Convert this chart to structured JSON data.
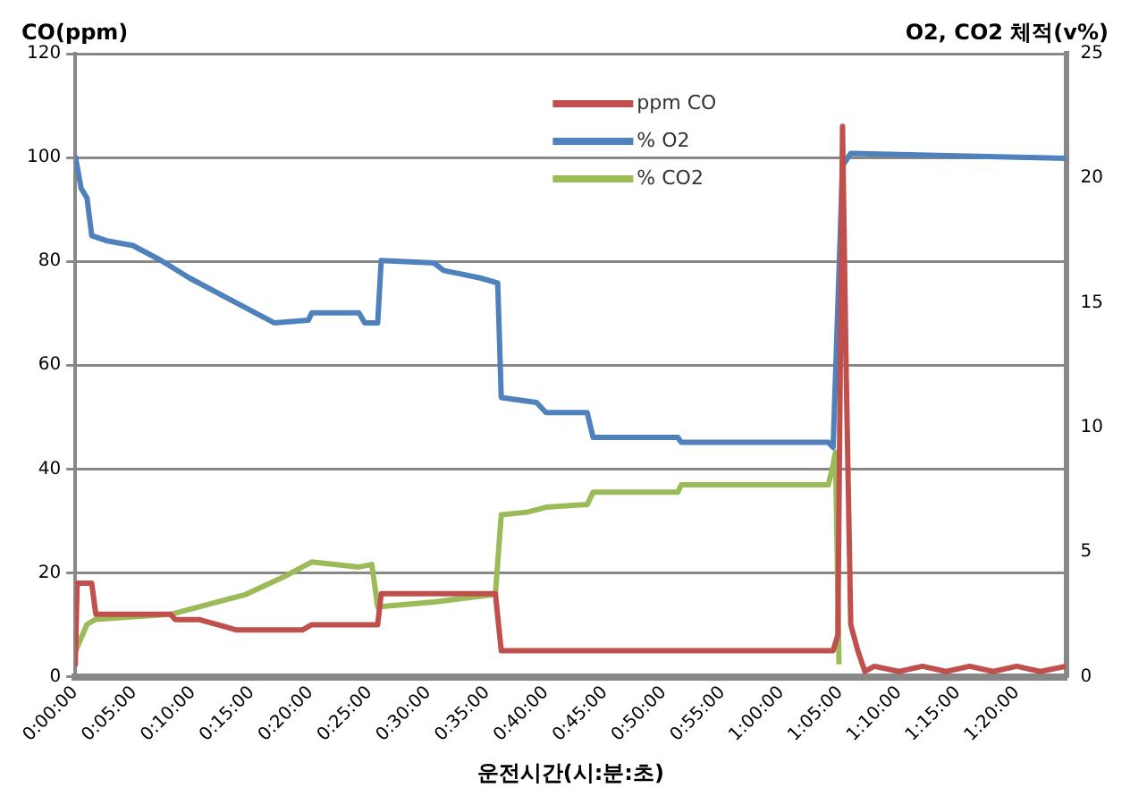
{
  "chart_data": {
    "type": "line",
    "xlabel": "운전시간(시:분:초)",
    "ylabel": "CO(ppm)",
    "y2label": "O2, CO2 체적(v%)",
    "xlim": [
      0,
      84.2
    ],
    "xticks": [
      {
        "value": 0,
        "label": "0:00:00"
      },
      {
        "value": 5,
        "label": "0:05:00"
      },
      {
        "value": 10,
        "label": "0:10:00"
      },
      {
        "value": 15,
        "label": "0:15:00"
      },
      {
        "value": 20,
        "label": "0:20:00"
      },
      {
        "value": 25,
        "label": "0:25:00"
      },
      {
        "value": 30,
        "label": "0:30:00"
      },
      {
        "value": 35,
        "label": "0:35:00"
      },
      {
        "value": 40,
        "label": "0:40:00"
      },
      {
        "value": 45,
        "label": "0:45:00"
      },
      {
        "value": 50,
        "label": "0:50:00"
      },
      {
        "value": 55,
        "label": "0:55:00"
      },
      {
        "value": 60,
        "label": "1:00:00"
      },
      {
        "value": 65,
        "label": "1:05:00"
      },
      {
        "value": 70,
        "label": "1:10:00"
      },
      {
        "value": 75,
        "label": "1:15:00"
      },
      {
        "value": 80,
        "label": "1:20:00"
      }
    ],
    "ylim": [
      0,
      120
    ],
    "yticks": [
      0,
      20,
      40,
      60,
      80,
      100,
      120
    ],
    "y2lim": [
      0,
      25
    ],
    "y2ticks": [
      0,
      5,
      10,
      15,
      20,
      25
    ],
    "grid": "y",
    "legend": "top",
    "marker": "none",
    "line_style": "solid",
    "series": [
      {
        "name": "ppm CO",
        "color": "#c0504d",
        "x": [
          0,
          0.16,
          1.4,
          1.75,
          8.1,
          8.5,
          10.5,
          13.7,
          19.3,
          20.1,
          25.7,
          26,
          35.7,
          36.2,
          64.4,
          64.8,
          65.2,
          65.5,
          65.9,
          66.5,
          67.1,
          67.9,
          70,
          72,
          74,
          76,
          78,
          80,
          82,
          84.2
        ],
        "values": [
          2,
          18,
          18,
          12,
          12,
          11,
          11,
          9,
          9,
          10,
          10,
          16,
          16,
          5,
          5,
          8,
          106,
          60,
          10,
          5,
          1,
          2,
          1,
          2,
          1,
          2,
          1,
          2,
          1,
          2
        ]
      },
      {
        "name": "% O2",
        "color": "#4f81bd",
        "axis": "y2",
        "x": [
          0,
          0.5,
          1,
          1.4,
          2.6,
          4.9,
          7.3,
          9.7,
          12.9,
          16.9,
          19.8,
          20.1,
          24.1,
          24.6,
          25.7,
          26,
          30.5,
          31.3,
          34.4,
          35.9,
          36.2,
          39.2,
          40,
          43.5,
          44,
          51.2,
          51.5,
          64,
          64.4,
          65.2,
          65.9,
          84.2
        ],
        "values": [
          20.9,
          19.6,
          19.2,
          17.7,
          17.5,
          17.3,
          16.7,
          16,
          15.2,
          14.2,
          14.3,
          14.6,
          14.6,
          14.2,
          14.2,
          16.7,
          16.6,
          16.3,
          16,
          15.8,
          11.2,
          11,
          10.6,
          10.6,
          9.6,
          9.6,
          9.4,
          9.4,
          9.2,
          20.5,
          21,
          20.8
        ]
      },
      {
        "name": "% CO2",
        "color": "#9bbb59",
        "axis": "y2",
        "x": [
          0,
          1,
          1.75,
          8.1,
          14.5,
          17.7,
          19.3,
          20.1,
          24.1,
          25.2,
          25.7,
          30.5,
          35.7,
          36.2,
          38.4,
          40,
          43.2,
          43.5,
          44,
          51.2,
          51.5,
          64,
          64.4,
          64.6,
          64.9
        ],
        "values": [
          1,
          2.1,
          2.3,
          2.5,
          3.3,
          4,
          4.4,
          4.6,
          4.4,
          4.5,
          2.8,
          3,
          3.3,
          6.5,
          6.6,
          6.8,
          6.9,
          6.9,
          7.4,
          7.4,
          7.7,
          7.7,
          8.5,
          9,
          0.5
        ]
      }
    ]
  }
}
